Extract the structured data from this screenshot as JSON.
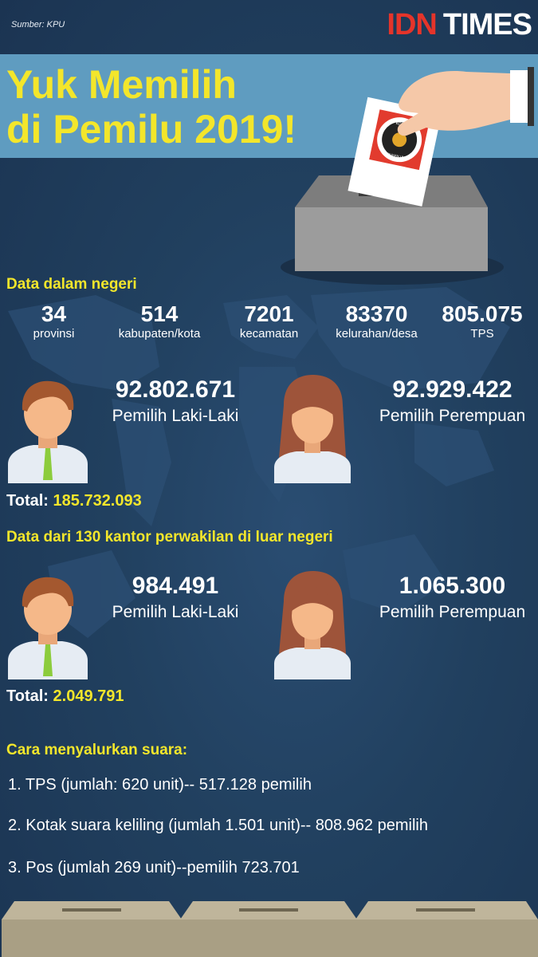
{
  "source": "Sumber: KPU",
  "logo": {
    "idn": "IDN",
    "times": "TIMES"
  },
  "title": {
    "line1": "Yuk Memilih",
    "line2": "di Pemilu 2019!"
  },
  "ballot_text": {
    "top": "KOMISI",
    "bottom": "PEMILIHAN UMUM"
  },
  "domestic": {
    "heading": "Data dalam negeri",
    "stats": [
      {
        "value": "34",
        "label": "provinsi"
      },
      {
        "value": "514",
        "label": "kabupaten/kota"
      },
      {
        "value": "7201",
        "label": "kecamatan"
      },
      {
        "value": "83370",
        "label": "kelurahan/desa"
      },
      {
        "value": "805.075",
        "label": "TPS"
      }
    ],
    "male": {
      "value": "92.802.671",
      "label": "Pemilih Laki-Laki"
    },
    "female": {
      "value": "92.929.422",
      "label": "Pemilih Perempuan"
    },
    "total_label": "Total:",
    "total_value": "185.732.093"
  },
  "abroad": {
    "heading": "Data dari 130 kantor perwakilan di luar negeri",
    "male": {
      "value": "984.491",
      "label": "Pemilih Laki-Laki"
    },
    "female": {
      "value": "1.065.300",
      "label": "Pemilih Perempuan"
    },
    "total_label": "Total:",
    "total_value": "2.049.791"
  },
  "methods": {
    "heading": "Cara menyalurkan suara:",
    "items": [
      "1. TPS (jumlah: 620 unit)-- 517.128 pemilih",
      "2. Kotak suara keliling (jumlah 1.501 unit)-- 808.962 pemilih",
      "3. Pos (jumlah 269 unit)--pemilih 723.701"
    ]
  },
  "colors": {
    "accent": "#f3e62b",
    "background": "#21405f",
    "banner": "#5f9cc0",
    "logo_red": "#e5342a"
  }
}
